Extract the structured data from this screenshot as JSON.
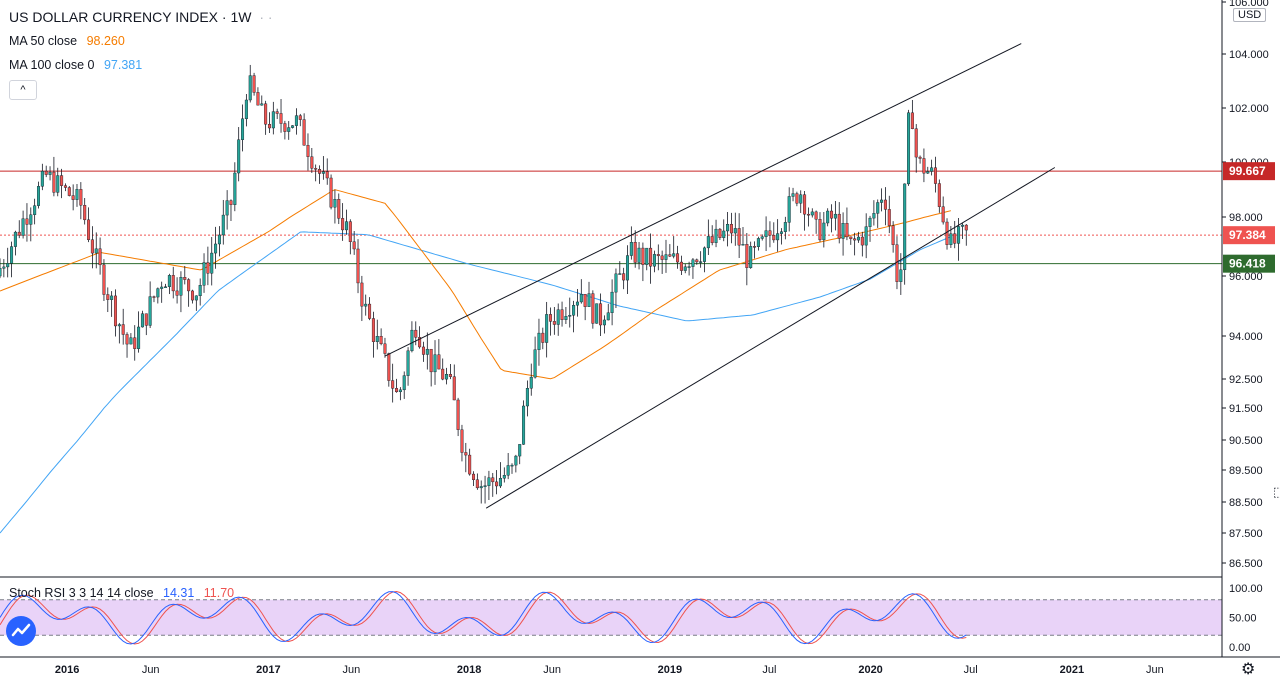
{
  "legend": {
    "title": "US DOLLAR CURRENCY INDEX · 1W",
    "dots": "· ·",
    "ma50_label": "MA 50 close",
    "ma50_value": "98.260",
    "ma100_label": "MA 100 close 0",
    "ma100_value": "97.381",
    "collapse_symbol": "^"
  },
  "currency_badge": "USD",
  "stoch_legend": {
    "label": "Stoch RSI 3 3 14 14 close",
    "k_value": "14.31",
    "d_value": "11.70"
  },
  "colors": {
    "up": "#26a69a",
    "down": "#ef5350",
    "ma50": "#f57c00",
    "ma100": "#42a5f5",
    "resistance": "#c62828",
    "support": "#2e6b2e",
    "price_tag": "#ef5350",
    "stoch_band": "#e1c4f5",
    "stoch_k": "#2962ff",
    "stoch_d": "#ef5350"
  },
  "icons": {
    "gear": "gear-icon",
    "logo": "tradingview-logo-icon",
    "cursor": "cursor-icon"
  },
  "chart_data": {
    "type": "candlestick",
    "title": "US DOLLAR CURRENCY INDEX",
    "interval": "1W",
    "yaxis_ticks": [
      "86.500",
      "87.500",
      "88.500",
      "89.500",
      "90.500",
      "91.500",
      "92.500",
      "94.000",
      "96.000",
      "98.000",
      "100.000",
      "102.000",
      "104.000",
      "106.000"
    ],
    "xaxis_ticks": [
      "2016",
      "Jun",
      "2017",
      "Jun",
      "2018",
      "Jun",
      "2019",
      "Jul",
      "2020",
      "Jul",
      "2021",
      "Jun"
    ],
    "price_labels": [
      {
        "name": "resistance",
        "value": "99.667"
      },
      {
        "name": "last",
        "value": "97.384"
      },
      {
        "name": "support",
        "value": "96.418"
      }
    ],
    "horizontal_levels": [
      99.667,
      96.418
    ],
    "last_price": 97.384,
    "channel": {
      "upper": [
        [
          "2017-08",
          93.3
        ],
        [
          "2020-10",
          104.4
        ]
      ],
      "lower": [
        [
          "2018-02",
          88.3
        ],
        [
          "2020-12",
          99.8
        ]
      ]
    },
    "price_path": [
      [
        "2015-09",
        96.0
      ],
      [
        "2015-12",
        99.5
      ],
      [
        "2016-02",
        98.5
      ],
      [
        "2016-03",
        96.5
      ],
      [
        "2016-05",
        93.5
      ],
      [
        "2016-07",
        96.0
      ],
      [
        "2016-09",
        95.5
      ],
      [
        "2016-11",
        98.5
      ],
      [
        "2016-12",
        103.0
      ],
      [
        "2017-01",
        101.5
      ],
      [
        "2017-03",
        101.5
      ],
      [
        "2017-04",
        100.0
      ],
      [
        "2017-06",
        97.5
      ],
      [
        "2017-07",
        95.0
      ],
      [
        "2017-09",
        91.8
      ],
      [
        "2017-10",
        94.5
      ],
      [
        "2017-11",
        93.0
      ],
      [
        "2017-12",
        92.5
      ],
      [
        "2018-01",
        90.0
      ],
      [
        "2018-02",
        89.0
      ],
      [
        "2018-04",
        89.5
      ],
      [
        "2018-05",
        93.0
      ],
      [
        "2018-06",
        94.5
      ],
      [
        "2018-08",
        95.5
      ],
      [
        "2018-09",
        94.5
      ],
      [
        "2018-11",
        96.8
      ],
      [
        "2018-12",
        96.5
      ],
      [
        "2019-02",
        96.5
      ],
      [
        "2019-03",
        96.8
      ],
      [
        "2019-05",
        97.6
      ],
      [
        "2019-06",
        96.5
      ],
      [
        "2019-07",
        97.2
      ],
      [
        "2019-08",
        98.0
      ],
      [
        "2019-09",
        99.0
      ],
      [
        "2019-10",
        97.5
      ],
      [
        "2019-11",
        98.0
      ],
      [
        "2019-12",
        97.0
      ],
      [
        "2020-01",
        97.5
      ],
      [
        "2020-02",
        99.0
      ],
      [
        "2020-03",
        95.5
      ],
      [
        "2020-03-20",
        102.5
      ],
      [
        "2020-04",
        100.0
      ],
      [
        "2020-05",
        99.5
      ],
      [
        "2020-06",
        97.0
      ],
      [
        "2020-06-26",
        97.4
      ]
    ],
    "ma50_path": [
      [
        "2015-09",
        95.5
      ],
      [
        "2016-03",
        96.8
      ],
      [
        "2016-09",
        96.2
      ],
      [
        "2017-01",
        97.5
      ],
      [
        "2017-05",
        99.0
      ],
      [
        "2017-08",
        98.5
      ],
      [
        "2017-12",
        95.5
      ],
      [
        "2018-03",
        92.8
      ],
      [
        "2018-06",
        92.5
      ],
      [
        "2018-09",
        93.6
      ],
      [
        "2018-12",
        94.8
      ],
      [
        "2019-04",
        96.2
      ],
      [
        "2019-08",
        96.9
      ],
      [
        "2019-12",
        97.4
      ],
      [
        "2020-03",
        97.8
      ],
      [
        "2020-06",
        98.26
      ]
    ],
    "ma100_path": [
      [
        "2015-09",
        87.5
      ],
      [
        "2016-04",
        92.0
      ],
      [
        "2016-10",
        95.5
      ],
      [
        "2017-03",
        97.5
      ],
      [
        "2017-07",
        97.4
      ],
      [
        "2018-01",
        96.4
      ],
      [
        "2018-06",
        95.7
      ],
      [
        "2018-10",
        95.0
      ],
      [
        "2019-02",
        94.5
      ],
      [
        "2019-06",
        94.7
      ],
      [
        "2019-10",
        95.3
      ],
      [
        "2020-01",
        95.9
      ],
      [
        "2020-04",
        96.9
      ],
      [
        "2020-06",
        97.381
      ]
    ],
    "stoch_rsi": {
      "ticks": [
        "100.00",
        "50.00",
        "0.00"
      ],
      "band": [
        20,
        80
      ],
      "k_value": 14.31,
      "d_value": 11.7
    }
  }
}
